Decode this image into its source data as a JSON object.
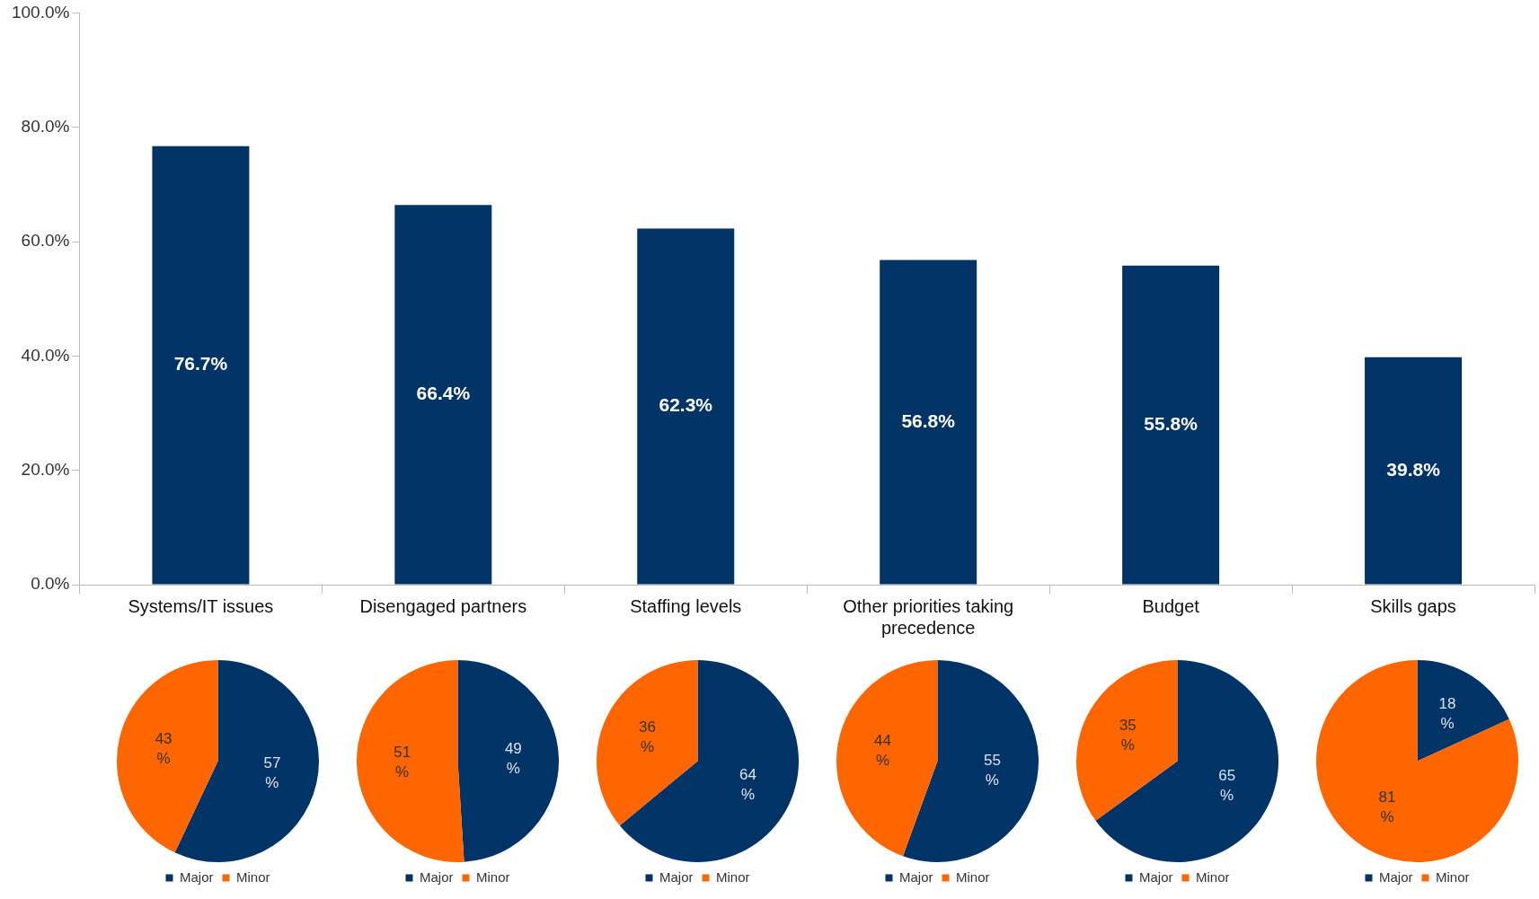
{
  "chart_data": [
    {
      "type": "bar",
      "categories": [
        "Systems/IT issues",
        "Disengaged partners",
        "Staffing levels",
        "Other priorities taking precedence",
        "Budget",
        "Skills gaps"
      ],
      "values": [
        76.7,
        66.4,
        62.3,
        56.8,
        55.8,
        39.8
      ],
      "value_labels": [
        "76.7%",
        "66.4%",
        "62.3%",
        "56.8%",
        "55.8%",
        "39.8%"
      ],
      "color": "#003366",
      "ylim": [
        0,
        100
      ],
      "yticks": [
        {
          "value": 0,
          "label": "0.0%"
        },
        {
          "value": 20,
          "label": "20.0%"
        },
        {
          "value": 40,
          "label": "40.0%"
        },
        {
          "value": 60,
          "label": "60.0%"
        },
        {
          "value": 80,
          "label": "80.0%"
        },
        {
          "value": 100,
          "label": "100.0%"
        }
      ],
      "legend": false
    },
    {
      "type": "pie",
      "categories": [
        "Major",
        "Minor"
      ],
      "values": [
        57,
        43
      ],
      "value_labels": [
        "57 %",
        "43 %"
      ],
      "colors": [
        "#003366",
        "#ff6600"
      ],
      "legend": "bottom"
    },
    {
      "type": "pie",
      "categories": [
        "Major",
        "Minor"
      ],
      "values": [
        49,
        51
      ],
      "value_labels": [
        "49 %",
        "51 %"
      ],
      "colors": [
        "#003366",
        "#ff6600"
      ],
      "legend": "bottom"
    },
    {
      "type": "pie",
      "categories": [
        "Major",
        "Minor"
      ],
      "values": [
        64,
        36
      ],
      "value_labels": [
        "64 %",
        "36 %"
      ],
      "colors": [
        "#003366",
        "#ff6600"
      ],
      "legend": "bottom"
    },
    {
      "type": "pie",
      "categories": [
        "Major",
        "Minor"
      ],
      "values": [
        55,
        44
      ],
      "value_labels": [
        "55 %",
        "44 %"
      ],
      "colors": [
        "#003366",
        "#ff6600"
      ],
      "legend": "bottom"
    },
    {
      "type": "pie",
      "categories": [
        "Major",
        "Minor"
      ],
      "values": [
        65,
        35
      ],
      "value_labels": [
        "65 %",
        "35 %"
      ],
      "colors": [
        "#003366",
        "#ff6600"
      ],
      "legend": "bottom"
    },
    {
      "type": "pie",
      "categories": [
        "Major",
        "Minor"
      ],
      "values": [
        18,
        81
      ],
      "value_labels": [
        "18 %",
        "81 %"
      ],
      "colors": [
        "#003366",
        "#ff6600"
      ],
      "legend": "bottom"
    }
  ]
}
